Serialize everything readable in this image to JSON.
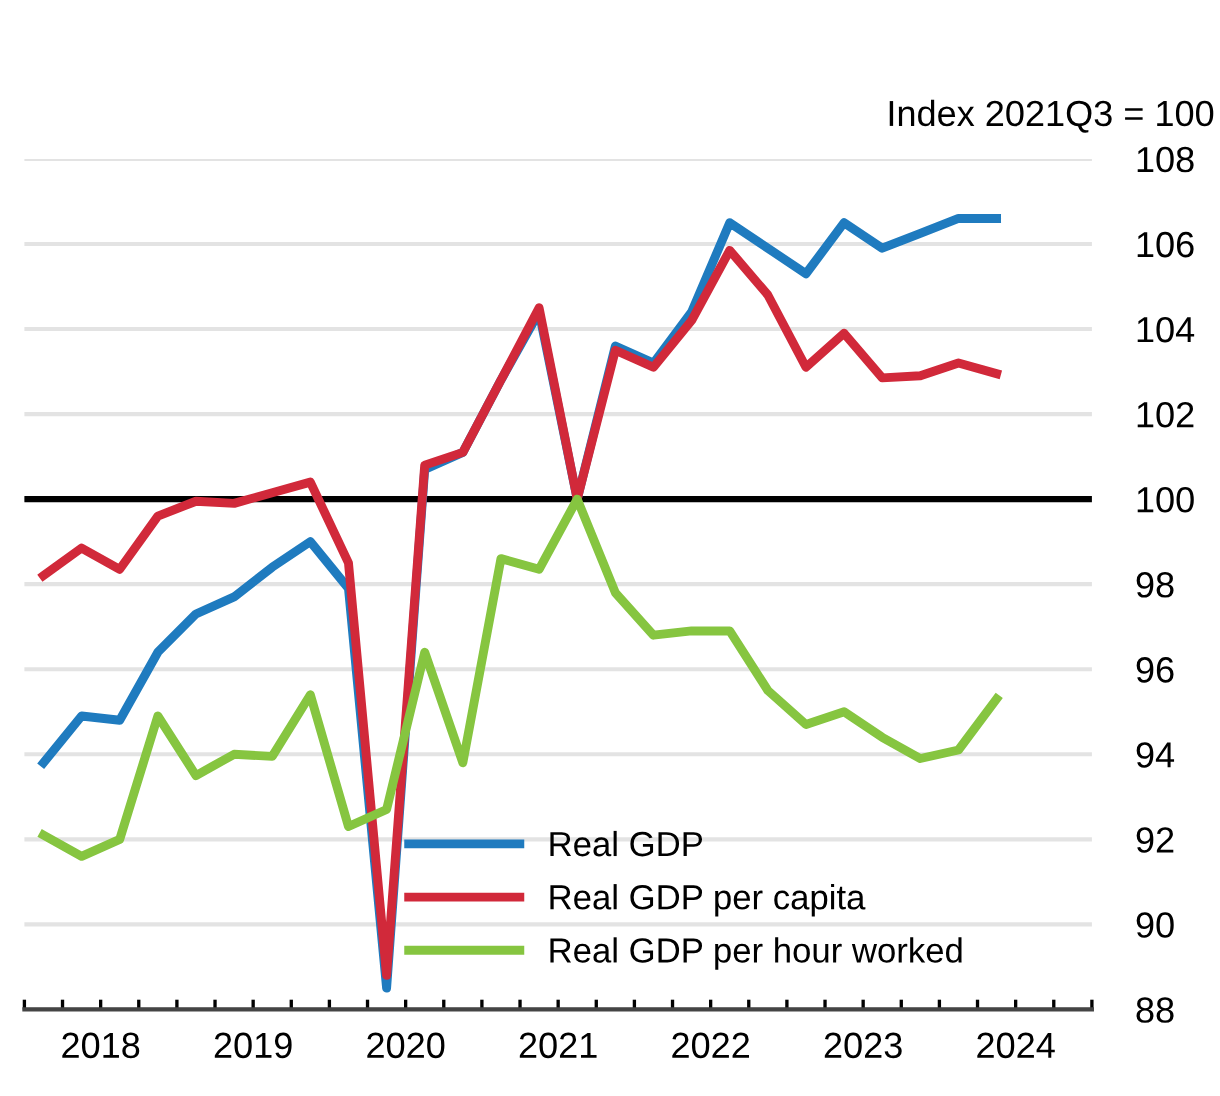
{
  "chart_data": {
    "type": "line",
    "ylabel": "Index 2021Q3 = 100",
    "x": [
      2018.125,
      2018.375,
      2018.625,
      2018.875,
      2019.125,
      2019.375,
      2019.625,
      2019.875,
      2020.125,
      2020.375,
      2020.625,
      2020.875,
      2021.125,
      2021.375,
      2021.625,
      2021.875,
      2022.125,
      2022.375,
      2022.625,
      2022.875,
      2023.125,
      2023.375,
      2023.625,
      2023.875,
      2024.125,
      2024.375
    ],
    "series": [
      {
        "name": "Real GDP",
        "color": "#1f7bbf",
        "values": [
          93.8,
          94.9,
          94.8,
          96.4,
          97.3,
          97.7,
          98.4,
          99.0,
          97.9,
          88.5,
          100.7,
          101.1,
          102.8,
          104.4,
          100.0,
          103.6,
          103.2,
          104.4,
          106.5,
          105.9,
          105.3,
          106.5,
          105.9,
          106.25,
          106.6,
          106.6
        ]
      },
      {
        "name": "Real GDP per capita",
        "color": "#d1293a",
        "values": [
          98.2,
          98.85,
          98.35,
          99.6,
          99.95,
          99.9,
          100.15,
          100.4,
          98.5,
          88.8,
          100.8,
          101.1,
          102.8,
          104.5,
          100.0,
          103.5,
          103.1,
          104.2,
          105.85,
          104.8,
          103.1,
          103.9,
          102.85,
          102.9,
          103.2,
          102.95
        ]
      },
      {
        "name": "Real GDP per hour worked",
        "color": "#86c540",
        "values": [
          92.1,
          91.6,
          92.0,
          94.9,
          93.5,
          94.0,
          93.95,
          95.4,
          92.3,
          92.7,
          96.4,
          93.8,
          98.6,
          98.35,
          100.0,
          97.8,
          96.8,
          96.9,
          96.9,
          95.5,
          94.7,
          95.0,
          94.4,
          93.9,
          94.1,
          95.3
        ]
      }
    ],
    "xlim": [
      2018,
      2025
    ],
    "xticks": [
      {
        "value": 2018,
        "label": null
      },
      {
        "value": 2018.25,
        "label": null
      },
      {
        "value": 2018.5,
        "label": "2018"
      },
      {
        "value": 2018.75,
        "label": null
      },
      {
        "value": 2019,
        "label": null
      },
      {
        "value": 2019.25,
        "label": null
      },
      {
        "value": 2019.5,
        "label": "2019"
      },
      {
        "value": 2019.75,
        "label": null
      },
      {
        "value": 2020,
        "label": null
      },
      {
        "value": 2020.25,
        "label": null
      },
      {
        "value": 2020.5,
        "label": "2020"
      },
      {
        "value": 2020.75,
        "label": null
      },
      {
        "value": 2021,
        "label": null
      },
      {
        "value": 2021.25,
        "label": null
      },
      {
        "value": 2021.5,
        "label": "2021"
      },
      {
        "value": 2021.75,
        "label": null
      },
      {
        "value": 2022,
        "label": null
      },
      {
        "value": 2022.25,
        "label": null
      },
      {
        "value": 2022.5,
        "label": "2022"
      },
      {
        "value": 2022.75,
        "label": null
      },
      {
        "value": 2023,
        "label": null
      },
      {
        "value": 2023.25,
        "label": null
      },
      {
        "value": 2023.5,
        "label": "2023"
      },
      {
        "value": 2023.75,
        "label": null
      },
      {
        "value": 2024,
        "label": null
      },
      {
        "value": 2024.25,
        "label": null
      },
      {
        "value": 2024.5,
        "label": "2024"
      },
      {
        "value": 2024.75,
        "label": null
      },
      {
        "value": 2025,
        "label": null
      }
    ],
    "ylim": [
      88,
      108
    ],
    "yticks": [
      88,
      90,
      92,
      94,
      96,
      98,
      100,
      102,
      104,
      106,
      108
    ],
    "ref_lines": [
      {
        "axis": "y",
        "value": 100,
        "color": "#000000",
        "line_style": "solid"
      }
    ],
    "grid": "y",
    "legend": "bottom",
    "line_style": "solid",
    "marker": "none"
  }
}
